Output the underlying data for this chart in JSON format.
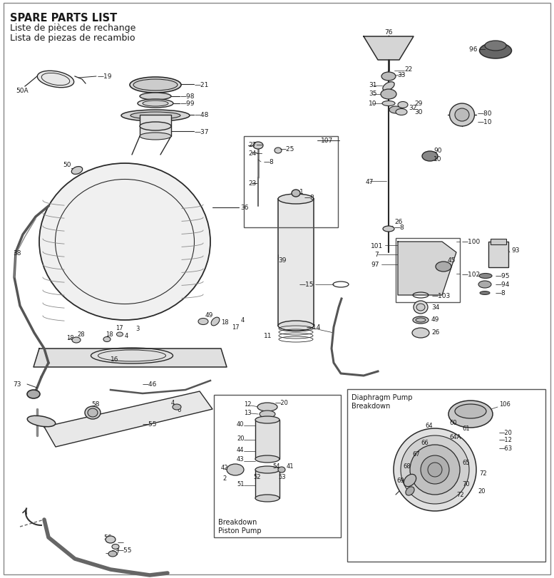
{
  "title_bold": "SPARE PARTS LIST",
  "title_sub1": "Liste de pièces de rechange",
  "title_sub2": "Lista de piezas de recambio",
  "bg_color": "#ffffff",
  "text_color": "#1a1a1a",
  "line_color": "#2a2a2a",
  "fig_width": 7.77,
  "fig_height": 8.12,
  "piston_box_label1": "Piston Pump",
  "piston_box_label2": "Breakdown",
  "diaphragm_box_label1": "Diaphragm Pump",
  "diaphragm_box_label2": "Breakdown"
}
